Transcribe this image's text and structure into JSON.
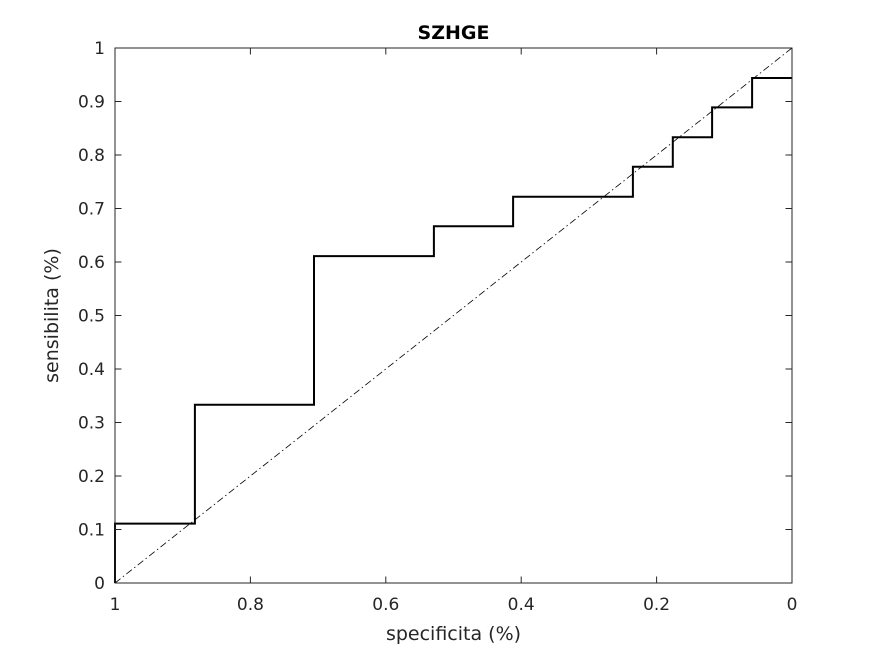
{
  "chart_data": {
    "type": "line",
    "title": "SZHGE",
    "xlabel": "specificita (%)",
    "ylabel": "sensibilita (%)",
    "xlim": [
      0,
      1
    ],
    "ylim": [
      0,
      1
    ],
    "x_reversed": true,
    "grid": false,
    "legend": "none",
    "xticks": [
      1,
      0.8,
      0.6,
      0.4,
      0.2,
      0
    ],
    "xtick_labels": [
      "1",
      "0.8",
      "0.6",
      "0.4",
      "0.2",
      "0"
    ],
    "yticks": [
      0,
      0.1,
      0.2,
      0.3,
      0.4,
      0.5,
      0.6,
      0.7,
      0.8,
      0.9,
      1
    ],
    "ytick_labels": [
      "0",
      "0.1",
      "0.2",
      "0.3",
      "0.4",
      "0.5",
      "0.6",
      "0.7",
      "0.8",
      "0.9",
      "1"
    ],
    "series": [
      {
        "style": "solid",
        "color": "#000000",
        "x": [
          1,
          1,
          0.882,
          0.882,
          0.706,
          0.706,
          0.529,
          0.529,
          0.412,
          0.412,
          0.235,
          0.235,
          0.176,
          0.176,
          0.118,
          0.118,
          0.059,
          0.059,
          0
        ],
        "y": [
          0,
          0.111,
          0.111,
          0.333,
          0.333,
          0.611,
          0.611,
          0.667,
          0.667,
          0.722,
          0.722,
          0.778,
          0.778,
          0.833,
          0.833,
          0.889,
          0.889,
          0.944,
          0.944
        ]
      },
      {
        "style": "dashdot",
        "color": "#000000",
        "x": [
          1,
          0
        ],
        "y": [
          0,
          1
        ]
      }
    ]
  }
}
